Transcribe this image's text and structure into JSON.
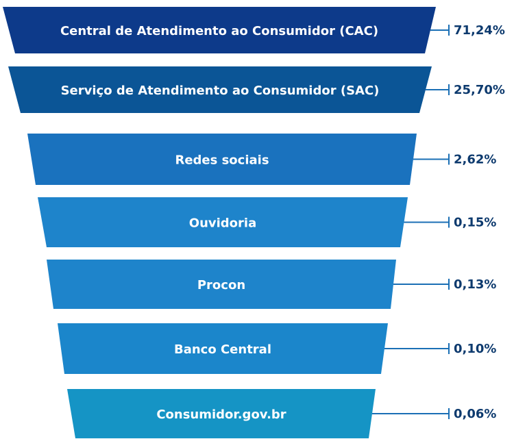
{
  "chart_data": {
    "type": "funnel",
    "categories": [
      "Central de Atendimento ao Consumidor (CAC)",
      "Serviço de Atendimento ao Consumidor (SAC)",
      "Redes sociais",
      "Ouvidoria",
      "Procon",
      "Banco Central",
      "Consumidor.gov.br"
    ],
    "values": [
      71.24,
      25.7,
      2.62,
      0.15,
      0.13,
      0.1,
      0.06
    ],
    "value_labels": [
      "71,24%",
      "25,70%",
      "2,62%",
      "0,15%",
      "0,13%",
      "0,10%",
      "0,06%"
    ],
    "colors": [
      "#0d3a8a",
      "#0b5596",
      "#1a72be",
      "#1e84cb",
      "#1e84cb",
      "#1b86cb",
      "#1594c5"
    ]
  }
}
